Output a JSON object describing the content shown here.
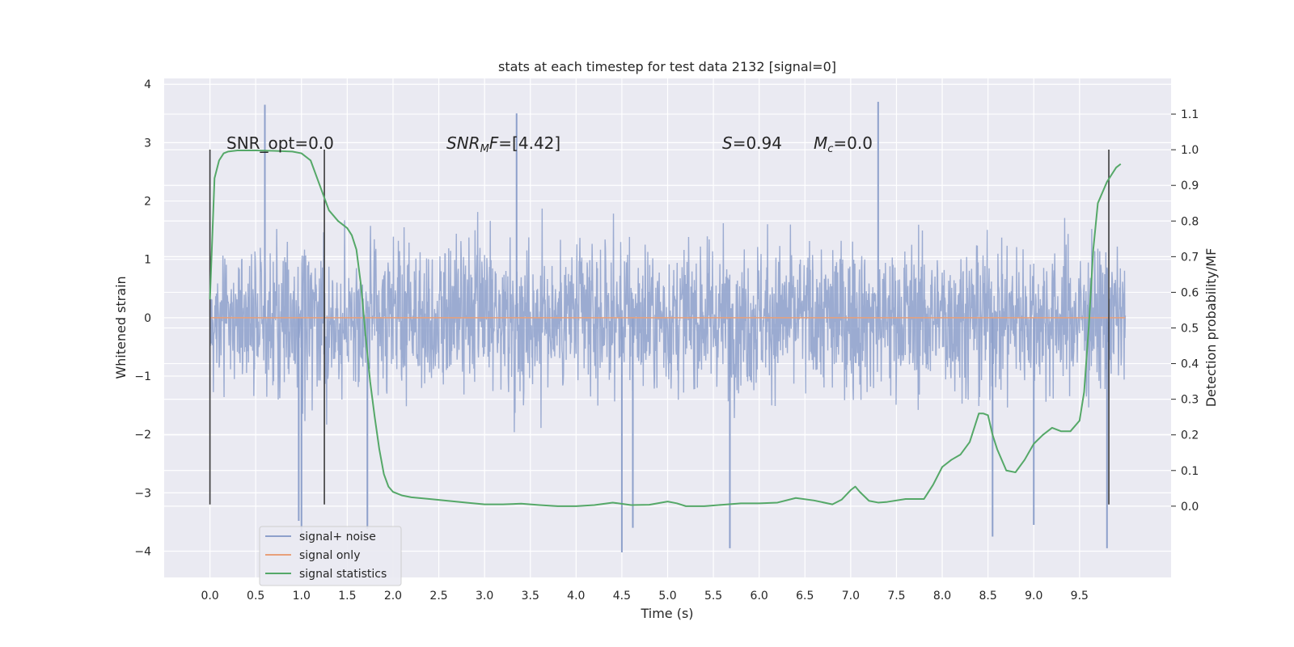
{
  "chart_data": {
    "type": "line",
    "title": "stats at each timestep for test data 2132 [signal=0]",
    "xlabel": "Time (s)",
    "ylabel_left": "Whitened strain",
    "ylabel_right": "Detection probability/MF",
    "xlim": [
      -0.5,
      10.5
    ],
    "ylim_left": [
      -4.45,
      4.1
    ],
    "ylim_right": [
      -0.2,
      1.2
    ],
    "xticks": [
      "0.0",
      "0.5",
      "1.0",
      "1.5",
      "2.0",
      "2.5",
      "3.0",
      "3.5",
      "4.0",
      "4.5",
      "5.0",
      "5.5",
      "6.0",
      "6.5",
      "7.0",
      "7.5",
      "8.0",
      "8.5",
      "9.0",
      "9.5"
    ],
    "yticks_left": [
      "−4",
      "−3",
      "−2",
      "−1",
      "0",
      "1",
      "2",
      "3",
      "4"
    ],
    "yticks_right": [
      "0.0",
      "0.1",
      "0.2",
      "0.3",
      "0.4",
      "0.5",
      "0.6",
      "0.7",
      "0.8",
      "0.9",
      "1.0",
      "1.1"
    ],
    "grid": true,
    "legend_position": "lower-left",
    "annotations": [
      {
        "text": "SNR_opt=0.0",
        "x": 0.2,
        "y": 3.0
      },
      {
        "main": "SNR",
        "sub": "M",
        "tail": "F=[4.42]",
        "x": 2.6,
        "y": 3.0
      },
      {
        "main": "S",
        "tail": "=0.94",
        "x": 5.6,
        "y": 3.0
      },
      {
        "main": "M",
        "sub": "c",
        "tail": "=0.0",
        "x": 6.6,
        "y": 3.0
      }
    ],
    "vertical_markers": [
      0.0,
      1.25,
      9.82
    ],
    "series": [
      {
        "name": "signal+ noise",
        "axis": "left",
        "color": "#8da0cb",
        "x_range": [
          0.0,
          10.0
        ],
        "envelope_typical": [
          -1.6,
          1.6
        ],
        "extremes": [
          [
            0.6,
            3.65
          ],
          [
            3.35,
            3.5
          ],
          [
            7.3,
            3.7
          ],
          [
            1.72,
            -3.62
          ],
          [
            4.5,
            -4.02
          ],
          [
            4.62,
            -3.6
          ],
          [
            5.68,
            -3.95
          ],
          [
            8.55,
            -3.75
          ],
          [
            9.0,
            -3.55
          ],
          [
            9.8,
            -3.95
          ],
          [
            0.97,
            -3.48
          ],
          [
            1.0,
            -3.7
          ]
        ]
      },
      {
        "name": "signal only",
        "axis": "left",
        "color": "#e8a07a",
        "x": [
          0.0,
          10.0
        ],
        "y": [
          0.0,
          0.0
        ]
      },
      {
        "name": "signal statistics",
        "axis": "right",
        "color": "#55a868",
        "x": [
          0.0,
          0.05,
          0.1,
          0.15,
          0.2,
          0.3,
          0.5,
          0.7,
          0.9,
          1.0,
          1.1,
          1.2,
          1.3,
          1.4,
          1.5,
          1.55,
          1.6,
          1.65,
          1.7,
          1.75,
          1.8,
          1.85,
          1.9,
          1.95,
          2.0,
          2.1,
          2.2,
          2.4,
          2.6,
          2.8,
          3.0,
          3.2,
          3.4,
          3.6,
          3.8,
          4.0,
          4.2,
          4.4,
          4.6,
          4.8,
          5.0,
          5.1,
          5.2,
          5.4,
          5.6,
          5.8,
          6.0,
          6.2,
          6.4,
          6.6,
          6.8,
          6.9,
          7.0,
          7.05,
          7.1,
          7.2,
          7.3,
          7.4,
          7.6,
          7.8,
          7.9,
          8.0,
          8.1,
          8.2,
          8.3,
          8.4,
          8.45,
          8.5,
          8.55,
          8.6,
          8.7,
          8.8,
          8.9,
          9.0,
          9.1,
          9.2,
          9.3,
          9.4,
          9.5,
          9.55,
          9.6,
          9.65,
          9.7,
          9.75,
          9.8,
          9.85,
          9.9,
          9.95
        ],
        "y": [
          0.58,
          0.92,
          0.97,
          0.99,
          0.995,
          0.998,
          0.998,
          0.997,
          0.995,
          0.99,
          0.97,
          0.9,
          0.83,
          0.8,
          0.78,
          0.76,
          0.72,
          0.62,
          0.48,
          0.35,
          0.25,
          0.16,
          0.09,
          0.055,
          0.04,
          0.03,
          0.025,
          0.02,
          0.015,
          0.01,
          0.005,
          0.005,
          0.007,
          0.003,
          0.0,
          0.0,
          0.003,
          0.01,
          0.003,
          0.004,
          0.013,
          0.008,
          0.0,
          0.0,
          0.004,
          0.008,
          0.008,
          0.01,
          0.023,
          0.016,
          0.005,
          0.018,
          0.045,
          0.055,
          0.04,
          0.015,
          0.01,
          0.012,
          0.02,
          0.02,
          0.06,
          0.11,
          0.13,
          0.145,
          0.18,
          0.26,
          0.26,
          0.255,
          0.2,
          0.16,
          0.1,
          0.095,
          0.13,
          0.175,
          0.2,
          0.22,
          0.21,
          0.21,
          0.24,
          0.32,
          0.5,
          0.72,
          0.85,
          0.88,
          0.91,
          0.93,
          0.95,
          0.96
        ]
      }
    ]
  }
}
